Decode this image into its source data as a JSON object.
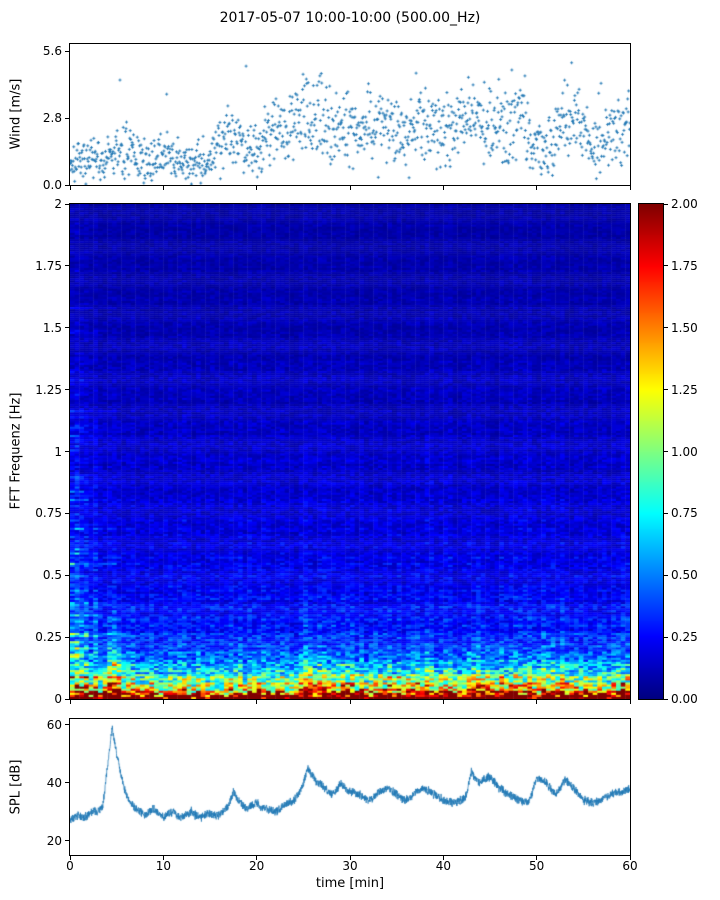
{
  "title": "2017-05-07 10:00-10:00 (500.00_Hz)",
  "colors": {
    "series": "#1f77b4",
    "axis": "#000000",
    "background": "#ffffff"
  },
  "chart_data": [
    {
      "type": "scatter",
      "name": "wind-speed",
      "ylabel": "Wind [m/s]",
      "ylim": [
        0,
        5.9
      ],
      "yticks": [
        0,
        2.8,
        5.6
      ],
      "ytick_labels": [
        "0.0",
        "2.8",
        "5.6"
      ],
      "xlim": [
        0,
        60
      ],
      "marker": "plus",
      "marker_color": "#1f77b4",
      "points_total": 1200,
      "mean_by_minute": [
        1.0,
        0.9,
        1.1,
        1.0,
        1.2,
        1.3,
        1.5,
        1.2,
        1.0,
        1.1,
        1.3,
        1.1,
        0.9,
        1.0,
        1.0,
        1.1,
        1.8,
        2.3,
        2.0,
        1.4,
        1.6,
        1.9,
        2.6,
        2.4,
        2.8,
        3.0,
        2.9,
        2.7,
        2.5,
        2.4,
        2.6,
        2.3,
        2.5,
        2.2,
        2.4,
        2.3,
        2.1,
        2.4,
        2.6,
        2.3,
        2.5,
        2.7,
        2.5,
        3.0,
        2.6,
        2.4,
        2.7,
        2.5,
        2.9,
        2.6,
        1.6,
        1.3,
        2.2,
        2.8,
        2.6,
        2.4,
        1.6,
        1.8,
        2.2,
        2.4,
        2.6
      ]
    },
    {
      "type": "heatmap",
      "name": "fft-spectrogram",
      "ylabel": "FFT Frequenz [Hz]",
      "ylim": [
        0,
        2
      ],
      "yticks": [
        0,
        0.25,
        0.5,
        0.75,
        1,
        1.25,
        1.5,
        1.75,
        2
      ],
      "ytick_labels": [
        "0",
        "0.25",
        "0.5",
        "0.75",
        "1",
        "1.25",
        "1.5",
        "1.75",
        "2"
      ],
      "xlim": [
        0,
        60
      ],
      "colormap": "jet",
      "clim": [
        0,
        2
      ],
      "colorbar_tick_values": [
        0,
        0.25,
        0.5,
        0.75,
        1,
        1.25,
        1.5,
        1.75,
        2
      ],
      "colorbar_tick_labels": [
        "0.00",
        "0.25",
        "0.50",
        "0.75",
        "1.00",
        "1.25",
        "1.50",
        "1.75",
        "2.00"
      ],
      "intensity_profile": {
        "surface_band_value": 1.75,
        "surface_band_freq": 0.016,
        "fast_decay": {
          "amp": 0.9,
          "scale": 0.08
        },
        "slow_decay": {
          "amp": 0.28,
          "scale": 0.9
        },
        "floor": 0.05,
        "startup_event": {
          "duration_min": 8,
          "amp": 0.6,
          "time_scale": 2.4,
          "freq_scale": 0.6
        },
        "spl_coupling": {
          "base_amp": 0.5,
          "spl_amp": 1.3,
          "freq_scale_base": 0.055,
          "freq_scale_spl": 0.05
        }
      }
    },
    {
      "type": "line",
      "name": "spl",
      "ylabel": "SPL [dB]",
      "xlabel": "time [min]",
      "ylim": [
        15,
        62
      ],
      "yticks": [
        20,
        40,
        60
      ],
      "ytick_labels": [
        "20",
        "40",
        "60"
      ],
      "xlim": [
        0,
        60
      ],
      "xticks": [
        0,
        10,
        20,
        30,
        40,
        50,
        60
      ],
      "xtick_labels": [
        "0",
        "10",
        "20",
        "30",
        "40",
        "50",
        "60"
      ],
      "line_color": "#1f77b4",
      "sample_step_min": 0.5,
      "values": [
        27,
        28,
        28.5,
        28,
        29,
        30,
        30,
        32,
        45,
        59,
        50,
        42,
        36,
        33,
        31,
        30,
        29,
        30,
        31,
        29,
        28,
        29.5,
        30,
        28.5,
        28,
        29,
        30,
        28.5,
        28,
        29,
        29.5,
        28.5,
        29,
        30,
        32,
        37,
        34,
        32,
        31,
        32,
        33,
        31.5,
        31,
        30.5,
        30,
        31,
        32.5,
        33,
        34,
        36,
        40,
        45,
        42,
        40,
        39,
        37.5,
        36,
        37,
        40,
        38,
        37,
        36.5,
        36,
        35,
        34,
        35,
        36.5,
        37,
        38.5,
        37,
        36,
        34.5,
        34,
        35,
        36.5,
        37.5,
        38,
        37,
        36,
        35,
        34,
        33.5,
        33,
        33.5,
        34,
        36,
        44,
        41,
        40,
        41.5,
        42,
        40,
        38,
        37,
        36,
        35,
        34,
        33.5,
        33,
        36,
        42,
        41,
        40,
        38,
        36,
        38,
        41,
        39.5,
        38,
        36,
        34,
        33.5,
        33,
        33.5,
        34,
        35,
        36,
        36.5,
        37,
        37.5,
        38
      ]
    }
  ]
}
